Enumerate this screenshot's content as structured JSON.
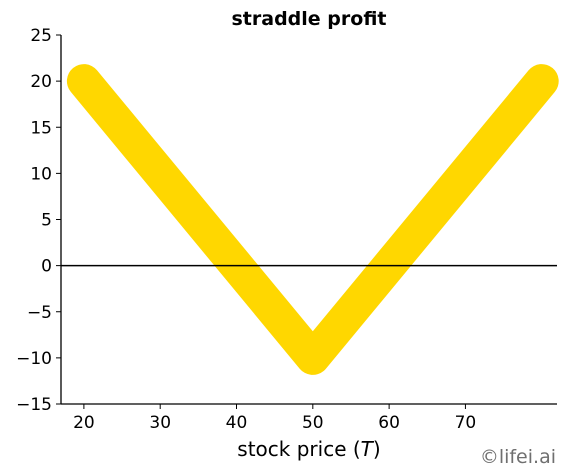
{
  "chart_data": {
    "type": "line",
    "title": "straddle profit",
    "xlabel_prefix": "stock price (",
    "xlabel_var": "T",
    "xlabel_suffix": ")",
    "ylabel": "",
    "xlim": [
      17,
      82
    ],
    "ylim": [
      -15,
      25
    ],
    "xticks": [
      20,
      30,
      40,
      50,
      60,
      70
    ],
    "yticks": [
      25,
      20,
      15,
      10,
      5,
      0,
      -5,
      -10,
      -15
    ],
    "ytick_labels": [
      "25",
      "20",
      "15",
      "10",
      "5",
      "0",
      "−5",
      "−10",
      "−15"
    ],
    "series": [
      {
        "x": [
          20,
          50,
          80
        ],
        "y": [
          20,
          -10,
          20
        ],
        "color": "#FFD700"
      }
    ],
    "hlines": [
      {
        "y": 0,
        "color": "#000000"
      }
    ],
    "grid": false,
    "spines": [
      "left",
      "bottom"
    ]
  },
  "watermark": "©lifei.ai"
}
